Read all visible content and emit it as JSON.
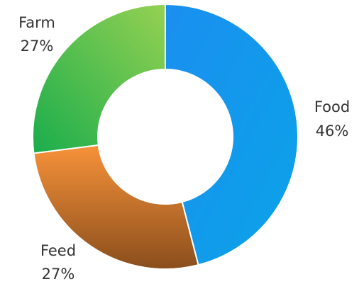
{
  "chart_data": {
    "type": "pie",
    "variant": "donut",
    "categories": [
      "Food",
      "Feed",
      "Farm"
    ],
    "values": [
      46,
      27,
      27
    ],
    "labels": [
      {
        "name": "Food",
        "value": "46%"
      },
      {
        "name": "Feed",
        "value": "27%"
      },
      {
        "name": "Farm",
        "value": "27%"
      }
    ],
    "colors": {
      "Food": [
        "#1a8ff0",
        "#0aa3e8"
      ],
      "Feed": [
        "#f7923a",
        "#8a4e1c"
      ],
      "Farm": [
        "#95d152",
        "#1aad4c"
      ]
    },
    "legend": "none",
    "title": ""
  }
}
